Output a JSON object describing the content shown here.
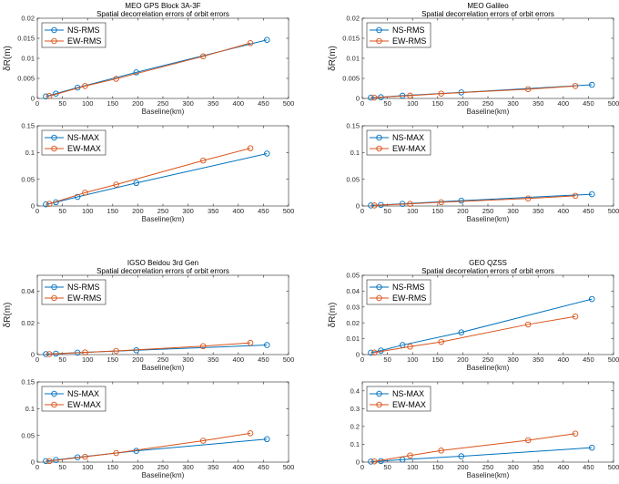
{
  "colors": {
    "ns": "#0072BD",
    "ew": "#D95319",
    "axis": "#262626"
  },
  "chart_data": [
    {
      "type": "line",
      "xlabel": "Baseline(km)",
      "ylabel": "δR(m)",
      "title": "MEO GPS Block 3A-3F",
      "subtitle": "Spatial decorrelation errors of orbit errors",
      "xlim": [
        0,
        500
      ],
      "ylim": [
        0,
        0.02
      ],
      "xticks": [
        "0",
        "50",
        "100",
        "150",
        "200",
        "250",
        "300",
        "350",
        "400",
        "450",
        "500"
      ],
      "yticks": [
        "0",
        "0.005",
        "0.01",
        "0.015",
        "0.02"
      ],
      "ytick_values": [
        0,
        0.005,
        0.01,
        0.015,
        0.02
      ],
      "legend_location": "top-left",
      "series": [
        {
          "name": "NS-RMS",
          "x": [
            17,
            37,
            80,
            197,
            457
          ],
          "y": [
            0.0005,
            0.0012,
            0.0027,
            0.0065,
            0.0146
          ]
        },
        {
          "name": "EW-RMS",
          "x": [
            24,
            95,
            157,
            330,
            424
          ],
          "y": [
            0.0006,
            0.0031,
            0.0049,
            0.0105,
            0.0138
          ]
        }
      ]
    },
    {
      "type": "line",
      "xlabel": "Baseline(km)",
      "ylabel": "δR(m)",
      "title": "MEO Galileo",
      "subtitle": "Spatial decorrelation errors of orbit errors",
      "xlim": [
        0,
        500
      ],
      "ylim": [
        0,
        0.02
      ],
      "xticks": [
        "0",
        "50",
        "100",
        "150",
        "200",
        "250",
        "300",
        "350",
        "400",
        "450",
        "500"
      ],
      "yticks": [
        "0",
        "0.005",
        "0.01",
        "0.015",
        "0.02"
      ],
      "ytick_values": [
        0,
        0.005,
        0.01,
        0.015,
        0.02
      ],
      "legend_location": "top-left",
      "series": [
        {
          "name": "NS-RMS",
          "x": [
            17,
            37,
            80,
            197,
            457
          ],
          "y": [
            0.0002,
            0.0003,
            0.0007,
            0.0015,
            0.0034
          ]
        },
        {
          "name": "EW-RMS",
          "x": [
            24,
            95,
            157,
            330,
            424
          ],
          "y": [
            0.0002,
            0.0007,
            0.0012,
            0.0023,
            0.0031
          ]
        }
      ]
    },
    {
      "type": "line",
      "xlabel": "Baseline(km)",
      "ylabel": "",
      "title": "",
      "subtitle": "",
      "xlim": [
        0,
        500
      ],
      "ylim": [
        0,
        0.15
      ],
      "xticks": [
        "0",
        "50",
        "100",
        "150",
        "200",
        "250",
        "300",
        "350",
        "400",
        "450",
        "500"
      ],
      "yticks": [
        "0",
        "0.05",
        "0.1",
        "0.15"
      ],
      "ytick_values": [
        0,
        0.05,
        0.1,
        0.15
      ],
      "legend_location": "top-left",
      "series": [
        {
          "name": "NS-MAX",
          "x": [
            17,
            37,
            80,
            197,
            457
          ],
          "y": [
            0.003,
            0.007,
            0.017,
            0.043,
            0.098
          ]
        },
        {
          "name": "EW-MAX",
          "x": [
            24,
            95,
            157,
            330,
            424
          ],
          "y": [
            0.004,
            0.025,
            0.04,
            0.085,
            0.108
          ]
        }
      ]
    },
    {
      "type": "line",
      "xlabel": "Baseline(km)",
      "ylabel": "",
      "title": "",
      "subtitle": "",
      "xlim": [
        0,
        500
      ],
      "ylim": [
        0,
        0.15
      ],
      "xticks": [
        "0",
        "50",
        "100",
        "150",
        "200",
        "250",
        "300",
        "350",
        "400",
        "450",
        "500"
      ],
      "yticks": [
        "0",
        "0.05",
        "0.1",
        "0.15"
      ],
      "ytick_values": [
        0,
        0.05,
        0.1,
        0.15
      ],
      "legend_location": "top-left",
      "series": [
        {
          "name": "NS-MAX",
          "x": [
            17,
            37,
            80,
            197,
            457
          ],
          "y": [
            0.001,
            0.002,
            0.004,
            0.01,
            0.022
          ]
        },
        {
          "name": "EW-MAX",
          "x": [
            24,
            95,
            157,
            330,
            424
          ],
          "y": [
            0.001,
            0.004,
            0.007,
            0.014,
            0.019
          ]
        }
      ]
    },
    {
      "type": "line",
      "xlabel": "Baseline(km)",
      "ylabel": "δR(m)",
      "title": "IGSO Beidou 3rd Gen",
      "subtitle": "Spatial decorrelation errors of orbit errors",
      "xlim": [
        0,
        500
      ],
      "ylim": [
        0,
        0.05
      ],
      "xticks": [
        "0",
        "50",
        "100",
        "150",
        "200",
        "250",
        "300",
        "350",
        "400",
        "450",
        "500"
      ],
      "yticks": [
        "0",
        "0.02",
        "0.04"
      ],
      "ytick_values": [
        0,
        0.02,
        0.04
      ],
      "legend_location": "top-left",
      "series": [
        {
          "name": "NS-RMS",
          "x": [
            17,
            37,
            80,
            197,
            457
          ],
          "y": [
            0.0003,
            0.0006,
            0.0012,
            0.0027,
            0.006
          ]
        },
        {
          "name": "EW-RMS",
          "x": [
            24,
            95,
            157,
            330,
            424
          ],
          "y": [
            0.0003,
            0.0014,
            0.0023,
            0.0053,
            0.0074
          ]
        }
      ]
    },
    {
      "type": "line",
      "xlabel": "Baseline(km)",
      "ylabel": "δR(m)",
      "title": "GEO QZSS",
      "subtitle": "Spatial decorrelation errors of orbit errors",
      "xlim": [
        0,
        500
      ],
      "ylim": [
        0,
        0.05
      ],
      "xticks": [
        "0",
        "50",
        "100",
        "150",
        "200",
        "250",
        "300",
        "350",
        "400",
        "450",
        "500"
      ],
      "yticks": [
        "0",
        "0.01",
        "0.02",
        "0.03",
        "0.04",
        "0.05"
      ],
      "ytick_values": [
        0,
        0.01,
        0.02,
        0.03,
        0.04,
        0.05
      ],
      "legend_location": "top-left",
      "series": [
        {
          "name": "NS-RMS",
          "x": [
            17,
            37,
            80,
            197,
            457
          ],
          "y": [
            0.0012,
            0.0025,
            0.006,
            0.014,
            0.035
          ]
        },
        {
          "name": "EW-RMS",
          "x": [
            24,
            95,
            157,
            330,
            424
          ],
          "y": [
            0.0013,
            0.005,
            0.008,
            0.019,
            0.024
          ]
        }
      ]
    },
    {
      "type": "line",
      "xlabel": "Baseline(km)",
      "ylabel": "",
      "title": "",
      "subtitle": "",
      "xlim": [
        0,
        500
      ],
      "ylim": [
        0,
        0.15
      ],
      "xticks": [
        "0",
        "50",
        "100",
        "150",
        "200",
        "250",
        "300",
        "350",
        "400",
        "450",
        "500"
      ],
      "yticks": [
        "0",
        "0.05",
        "0.1",
        "0.15"
      ],
      "ytick_values": [
        0,
        0.05,
        0.1,
        0.15
      ],
      "legend_location": "top-left",
      "series": [
        {
          "name": "NS-MAX",
          "x": [
            17,
            37,
            80,
            197,
            457
          ],
          "y": [
            0.002,
            0.004,
            0.009,
            0.021,
            0.043
          ]
        },
        {
          "name": "EW-MAX",
          "x": [
            24,
            95,
            157,
            330,
            424
          ],
          "y": [
            0.002,
            0.01,
            0.017,
            0.04,
            0.054
          ]
        }
      ]
    },
    {
      "type": "line",
      "xlabel": "Baseline(km)",
      "ylabel": "",
      "title": "",
      "subtitle": "",
      "xlim": [
        0,
        500
      ],
      "ylim": [
        0,
        0.45
      ],
      "xticks": [
        "0",
        "50",
        "100",
        "150",
        "200",
        "250",
        "300",
        "350",
        "400",
        "450",
        "500"
      ],
      "yticks": [
        "0",
        "0.1",
        "0.2",
        "0.3",
        "0.4"
      ],
      "ytick_values": [
        0,
        0.1,
        0.2,
        0.3,
        0.4
      ],
      "legend_location": "top-left",
      "series": [
        {
          "name": "NS-MAX",
          "x": [
            17,
            37,
            80,
            197,
            457
          ],
          "y": [
            0.003,
            0.006,
            0.014,
            0.033,
            0.081
          ]
        },
        {
          "name": "EW-MAX",
          "x": [
            24,
            95,
            157,
            330,
            424
          ],
          "y": [
            0.004,
            0.037,
            0.065,
            0.123,
            0.16
          ]
        }
      ]
    }
  ]
}
